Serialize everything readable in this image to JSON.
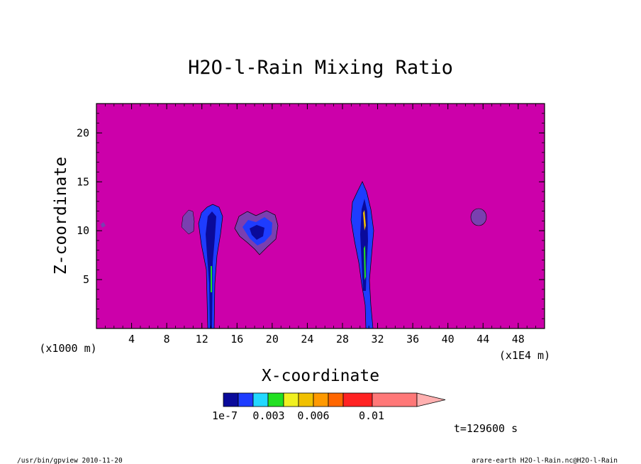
{
  "chart_data": {
    "type": "heatmap",
    "title": "H2O-l-Rain Mixing Ratio",
    "xlabel": "X-coordinate",
    "ylabel": "Z-coordinate",
    "x_unit": "(x1E4 m)",
    "z_unit": "(x1000 m)",
    "xlim": [
      0,
      51
    ],
    "ylim": [
      0,
      23
    ],
    "x_ticks": [
      4,
      8,
      12,
      16,
      20,
      24,
      28,
      32,
      36,
      40,
      44,
      48
    ],
    "y_ticks": [
      5,
      10,
      15,
      20
    ],
    "background_color": "#cc00aa",
    "colorbar": {
      "colors": [
        "#0a0a9a",
        "#1e3cff",
        "#22d8ff",
        "#22e022",
        "#f0f020",
        "#f0c000",
        "#ff9900",
        "#ff6600",
        "#ff2222",
        "#ff7878",
        "#ffb0b0"
      ],
      "labels": [
        "1e-7",
        "0.003",
        "0.006",
        "0.01"
      ]
    },
    "features": [
      {
        "x": 13.2,
        "z_bottom": 0,
        "z_top": 12.5,
        "level": "1e-7"
      },
      {
        "x": 30.8,
        "z_bottom": 0,
        "z_top": 14.8,
        "level": "1e-7"
      },
      {
        "x": 18.5,
        "z_bottom": 7.6,
        "z_top": 11.4,
        "level": "1e-7"
      },
      {
        "x": 43.8,
        "z_bottom": 10.5,
        "z_top": 12.2,
        "level": "1e-7"
      }
    ]
  },
  "time_label": "t=129600 s",
  "footer": {
    "left": "/usr/bin/gpview   2010-11-20",
    "right": "arare-earth_H2O-l-Rain.nc@H2O-l-Rain"
  }
}
